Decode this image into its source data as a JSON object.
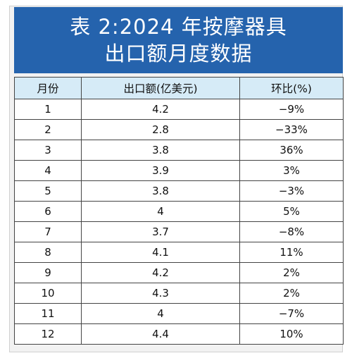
{
  "title": {
    "line1": "表 2:2024 年按摩器具",
    "line2": "出口额月度数据"
  },
  "headers": {
    "month": "月份",
    "export": "出口额(亿美元)",
    "mom": "环比(%)"
  },
  "rows": [
    {
      "month": "1",
      "export": "4.2",
      "mom": "−9%"
    },
    {
      "month": "2",
      "export": "2.8",
      "mom": "−33%"
    },
    {
      "month": "3",
      "export": "3.8",
      "mom": "36%"
    },
    {
      "month": "4",
      "export": "3.9",
      "mom": "3%"
    },
    {
      "month": "5",
      "export": "3.8",
      "mom": "−3%"
    },
    {
      "month": "6",
      "export": "4",
      "mom": "5%"
    },
    {
      "month": "7",
      "export": "3.7",
      "mom": "−8%"
    },
    {
      "month": "8",
      "export": "4.1",
      "mom": "11%"
    },
    {
      "month": "9",
      "export": "4.2",
      "mom": "2%"
    },
    {
      "month": "10",
      "export": "4.3",
      "mom": "2%"
    },
    {
      "month": "11",
      "export": "4",
      "mom": "−7%"
    },
    {
      "month": "12",
      "export": "4.4",
      "mom": "10%"
    }
  ],
  "colors": {
    "banner": "#2563ad",
    "header_bg": "#d6ebf7",
    "border": "#444444"
  }
}
